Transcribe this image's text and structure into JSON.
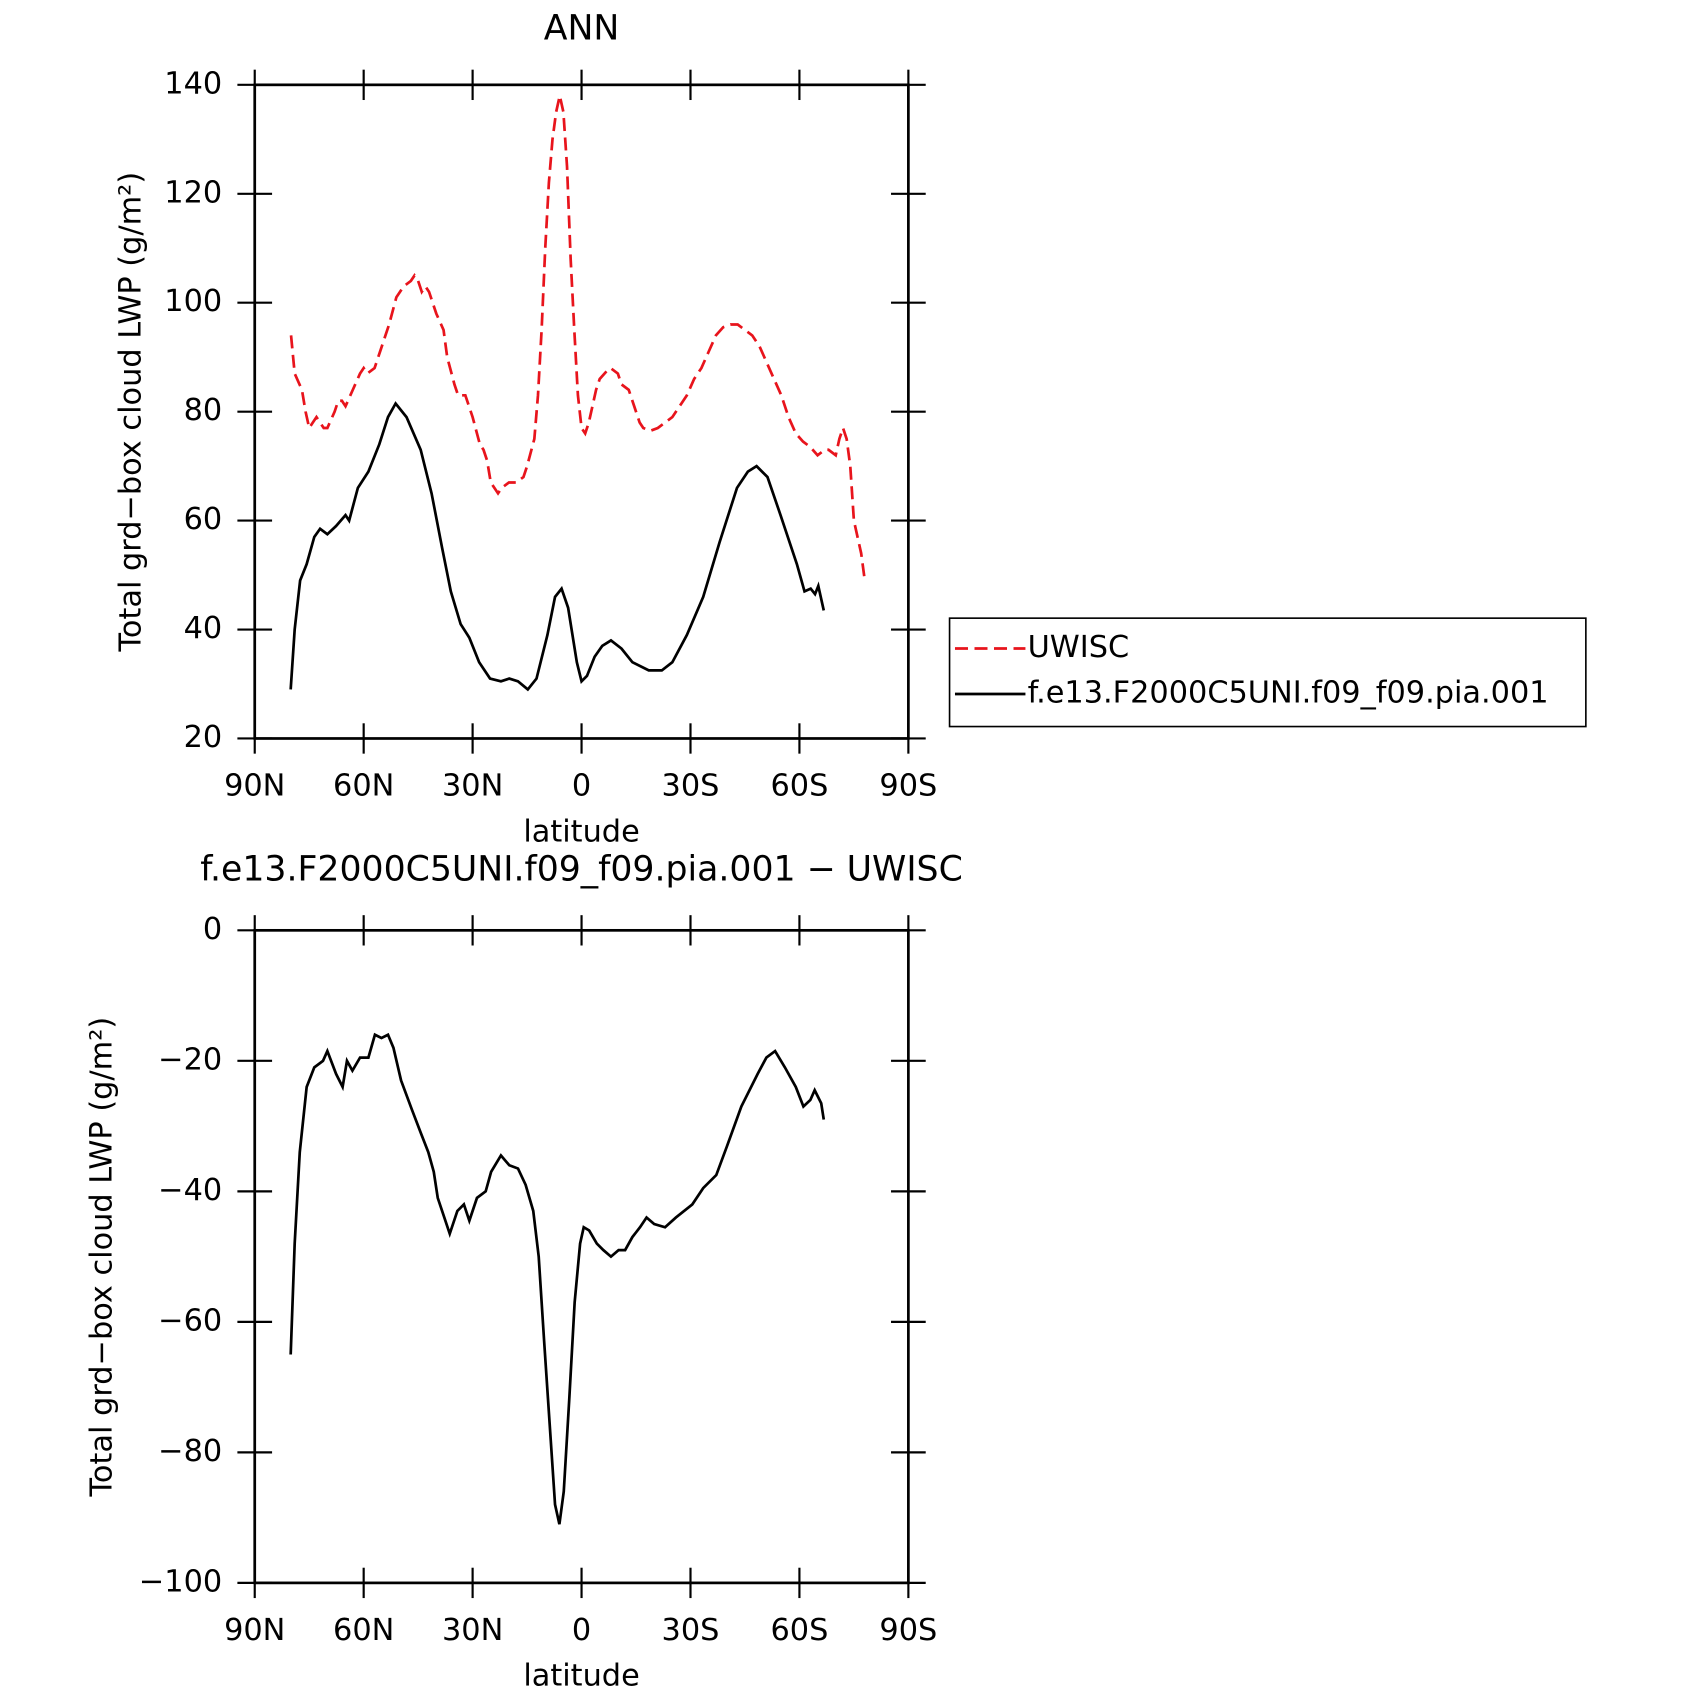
{
  "chart_data": [
    {
      "type": "line",
      "title": "ANN",
      "xlabel": "latitude",
      "ylabel": "Total grd−box cloud LWP (g/m²)",
      "xlim": [
        90,
        -90
      ],
      "xticks": [
        {
          "value": 90,
          "label": "90N"
        },
        {
          "value": 60,
          "label": "60N"
        },
        {
          "value": 30,
          "label": "30N"
        },
        0,
        {
          "value": -30,
          "label": "30S"
        },
        {
          "value": -60,
          "label": "60S"
        },
        {
          "value": -90,
          "label": "90S"
        }
      ],
      "ylim": [
        20,
        140
      ],
      "yticks": [
        20,
        40,
        60,
        80,
        100,
        120,
        140
      ],
      "legend": "right",
      "series": [
        {
          "name": "UWISC",
          "color": "#e8141c",
          "linestyle": "dashed",
          "x": [
            80,
            79,
            77,
            76,
            75,
            74,
            73,
            71,
            70,
            68,
            67,
            66,
            65,
            63,
            61,
            60,
            59,
            57,
            55,
            53,
            51,
            49,
            47,
            46,
            45,
            44,
            43,
            42,
            41,
            40,
            38,
            37,
            35,
            34,
            32,
            31,
            30,
            28,
            27,
            26,
            25,
            23,
            22,
            20,
            18,
            16,
            15,
            13,
            12,
            11,
            10,
            9,
            8,
            7,
            6,
            5,
            4,
            3,
            2,
            1,
            0,
            -1,
            -2,
            -3,
            -4,
            -5,
            -7,
            -8,
            -10,
            -11,
            -13,
            -14,
            -16,
            -17,
            -19,
            -21,
            -23,
            -25,
            -27,
            -29,
            -31,
            -33,
            -35,
            -37,
            -39,
            -41,
            -43,
            -45,
            -47,
            -49,
            -51,
            -53,
            -55,
            -57,
            -59,
            -61,
            -63,
            -65,
            -67,
            -68,
            -70,
            -71,
            -72,
            -73,
            -74,
            -75,
            -76,
            -77,
            -78
          ],
          "values": [
            94,
            87,
            84,
            80,
            77,
            78,
            79,
            77,
            77,
            80,
            82,
            82,
            81,
            84,
            87,
            88,
            87,
            88,
            92,
            96,
            101,
            103,
            104,
            105,
            104,
            102,
            103,
            102,
            100,
            98,
            95,
            90,
            85,
            83,
            83,
            81,
            79,
            74,
            73,
            71,
            67,
            65,
            66,
            67,
            67,
            68,
            70,
            75,
            83,
            95,
            110,
            122,
            130,
            135,
            138,
            135,
            125,
            108,
            95,
            83,
            77,
            76,
            78,
            81,
            84,
            86,
            87.5,
            88,
            87,
            85,
            84,
            82,
            78,
            77,
            76.5,
            77,
            78,
            79,
            81,
            83,
            86,
            88,
            91,
            94,
            95.5,
            96,
            96,
            95,
            94,
            92,
            89,
            86,
            83,
            79,
            76,
            74.5,
            73.5,
            72,
            73,
            73,
            72,
            75,
            77,
            75,
            70,
            60,
            57,
            54,
            49
          ]
        },
        {
          "name": "f.e13.F2000C5UNI.f09_f09.pia.001",
          "color": "#000000",
          "linestyle": "solid",
          "x": [
            80.1,
            79,
            77.5,
            75.7,
            73.6,
            72,
            70,
            67.6,
            65,
            64,
            61.6,
            58.7,
            55.7,
            53.3,
            51.2,
            48.2,
            44.3,
            41.3,
            38.4,
            36,
            33.3,
            30.9,
            28.2,
            25.2,
            22.2,
            19.9,
            17.5,
            14.8,
            12.4,
            9.4,
            7.3,
            5.5,
            3.7,
            1.3,
            0,
            -1.5,
            -3.6,
            -5.7,
            -8.1,
            -11,
            -14,
            -18.5,
            -22.1,
            -25,
            -29,
            -33.5,
            -38,
            -42.8,
            -45.8,
            -48.2,
            -51.2,
            -54.8,
            -59.3,
            -61.4,
            -63.1,
            -64.3,
            -65.2,
            -66.7
          ],
          "values": [
            29,
            40,
            49,
            52,
            57,
            58.5,
            57.5,
            59,
            61,
            60,
            66,
            69,
            74,
            79,
            81.5,
            79,
            73,
            65,
            55,
            47,
            41,
            38.5,
            34,
            31,
            30.5,
            31,
            30.5,
            29,
            31,
            39,
            46,
            47.5,
            44,
            34,
            30.5,
            31.5,
            35,
            37,
            38,
            36.5,
            34,
            32.5,
            32.5,
            34,
            39,
            46,
            56,
            66,
            69,
            70,
            68,
            61,
            52,
            47,
            47.5,
            46.5,
            48,
            43.5
          ]
        }
      ]
    },
    {
      "type": "line",
      "title": "f.e13.F2000C5UNI.f09_f09.pia.001 − UWISC",
      "xlabel": "latitude",
      "ylabel": "Total grd−box cloud LWP (g/m²)",
      "xlim": [
        90,
        -90
      ],
      "xticks": [
        {
          "value": 90,
          "label": "90N"
        },
        {
          "value": 60,
          "label": "60N"
        },
        {
          "value": 30,
          "label": "30N"
        },
        0,
        {
          "value": -30,
          "label": "30S"
        },
        {
          "value": -60,
          "label": "60S"
        },
        {
          "value": -90,
          "label": "90S"
        }
      ],
      "ylim": [
        -100,
        0
      ],
      "yticks": [
        {
          "value": -100,
          "label": "−100"
        },
        {
          "value": -80,
          "label": "−80"
        },
        {
          "value": -60,
          "label": "−60"
        },
        {
          "value": -40,
          "label": "−40"
        },
        {
          "value": -20,
          "label": "−20"
        },
        0
      ],
      "series": [
        {
          "color": "#000000",
          "linestyle": "solid",
          "x": [
            80.1,
            79,
            77.6,
            75.7,
            73.6,
            71.2,
            70,
            67.6,
            65.8,
            64.6,
            63.1,
            61,
            58.7,
            56.9,
            55.1,
            53.3,
            51.8,
            49.7,
            46.7,
            44.3,
            42.2,
            40.7,
            39.6,
            37.8,
            36.3,
            34.2,
            32.4,
            30.9,
            28.8,
            26.4,
            24.9,
            22.2,
            19.9,
            17.5,
            15.4,
            13.3,
            11.8,
            10.3,
            8.5,
            7.3,
            6.1,
            4.9,
            3.4,
            1.9,
            0.4,
            -0.6,
            -2.1,
            -4.2,
            -6,
            -8.1,
            -10.2,
            -12,
            -14,
            -16.1,
            -17.9,
            -20,
            -23,
            -26,
            -30.5,
            -33.5,
            -37.1,
            -40.1,
            -44,
            -48.5,
            -50.9,
            -53.3,
            -56,
            -59,
            -61.1,
            -63,
            -64.2,
            -66,
            -66.7
          ],
          "values": [
            -65,
            -48,
            -34,
            -24,
            -21,
            -20,
            -18.5,
            -22,
            -24,
            -20,
            -21.5,
            -19.5,
            -19.5,
            -16,
            -16.5,
            -16,
            -18,
            -23,
            -27.5,
            -31,
            -34,
            -37,
            -41,
            -44,
            -46.5,
            -43,
            -42,
            -44.5,
            -41,
            -40,
            -37,
            -34.5,
            -36,
            -36.5,
            -39,
            -43,
            -50,
            -63,
            -78,
            -88,
            -91,
            -86,
            -72,
            -57,
            -48,
            -45.5,
            -46,
            -48,
            -49,
            -50,
            -49,
            -49,
            -47,
            -45.5,
            -44,
            -45,
            -45.5,
            -44,
            -42,
            -39.5,
            -37.5,
            -33,
            -27,
            -22,
            -19.5,
            -18.5,
            -21,
            -24,
            -27,
            -26,
            -24.5,
            -26.5,
            -29
          ]
        }
      ]
    }
  ]
}
